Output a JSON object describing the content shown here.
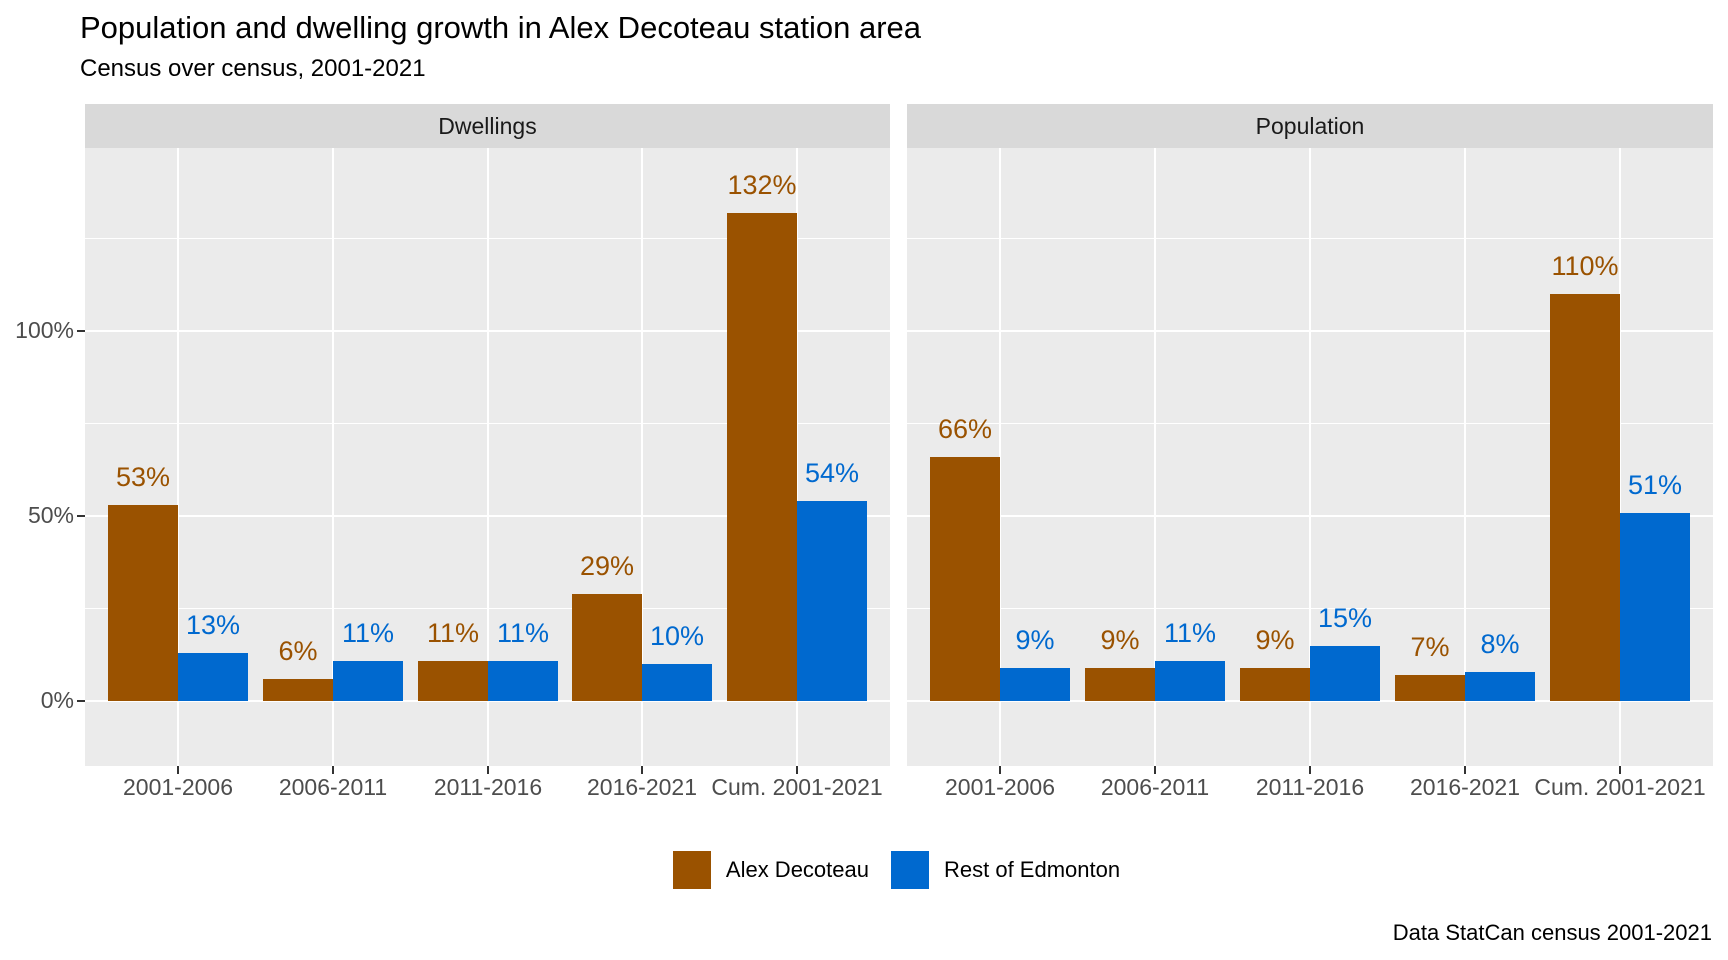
{
  "title": "Population and dwelling growth in Alex Decoteau station area",
  "subtitle": "Census over census, 2001-2021",
  "caption": "Data StatCan census 2001-2021",
  "chart_data": {
    "type": "bar",
    "layout_hint": "two horizontal facets, grouped (dodged) bars, legend at bottom, grid on",
    "categories": [
      "2001-2006",
      "2006-2011",
      "2011-2016",
      "2016-2021",
      "Cum. 2001-2021"
    ],
    "series": [
      {
        "name": "Alex Decoteau",
        "color": "#9a5200"
      },
      {
        "name": "Rest of Edmonton",
        "color": "#0069cf"
      }
    ],
    "facets": [
      {
        "label": "Dwellings",
        "series": [
          {
            "name": "Alex Decoteau",
            "values": [
              53,
              6,
              11,
              29,
              132
            ]
          },
          {
            "name": "Rest of Edmonton",
            "values": [
              13,
              11,
              11,
              10,
              54
            ]
          }
        ]
      },
      {
        "label": "Population",
        "series": [
          {
            "name": "Alex Decoteau",
            "values": [
              66,
              9,
              9,
              7,
              110
            ]
          },
          {
            "name": "Rest of Edmonton",
            "values": [
              9,
              11,
              15,
              8,
              51
            ]
          }
        ]
      }
    ],
    "value_suffix": "%",
    "y_axis": {
      "tick_values": [
        0,
        50,
        100
      ],
      "tick_labels": [
        "0%",
        "50%",
        "100%"
      ],
      "minor_tick_values": [
        25,
        75,
        125
      ],
      "ylim": [
        -17.5,
        149.5
      ]
    },
    "colors": {
      "panel_background": "#ebebeb",
      "strip_background": "#d9d9d9",
      "gridline": "#ffffff",
      "axis_text": "#4d4d4d",
      "tick_mark": "#333333",
      "text": "#000000"
    },
    "legend_position": "bottom"
  }
}
